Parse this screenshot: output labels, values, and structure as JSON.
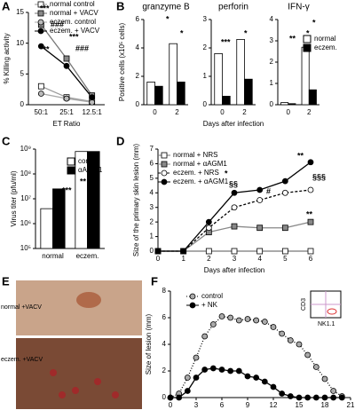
{
  "chart_data": [
    {
      "type": "line",
      "label": "A",
      "xlabel": "ET Ratio",
      "ylabel": "% Killing activity",
      "categories": [
        "50:1",
        "25:1",
        "12.5:1"
      ],
      "ylim": [
        0,
        15
      ],
      "yticks": [
        0,
        5,
        10,
        15
      ],
      "series": [
        {
          "name": "normal control",
          "marker": "square",
          "color": "#ffffff",
          "line_color": "#999999",
          "values": [
            3.0,
            1.2,
            0.5
          ]
        },
        {
          "name": "normal + VACV",
          "marker": "square",
          "color": "#888888",
          "line_color": "#777777",
          "values": [
            13,
            7.5,
            1.5
          ]
        },
        {
          "name": "eczem. control",
          "marker": "circle",
          "color": "#bbbbbb",
          "line_color": "#aaaaaa",
          "values": [
            1.8,
            1.0,
            0.4
          ]
        },
        {
          "name": "eczem. + VACV",
          "marker": "circle",
          "color": "#000000",
          "line_color": "#000000",
          "values": [
            9.5,
            6.3,
            1.2
          ]
        }
      ],
      "annotations": [
        "***",
        "###",
        "***",
        "***",
        "###"
      ]
    },
    {
      "type": "bar",
      "label": "B",
      "title": "granzyme B",
      "ylabel": "Positive cells (x10⁵ cells)",
      "categories": [
        "0",
        "2"
      ],
      "ylim": [
        0,
        6
      ],
      "yticks": [
        0,
        2,
        4,
        6
      ],
      "series": [
        {
          "name": "normal",
          "color": "#ffffff",
          "values": [
            1.6,
            4.3
          ]
        },
        {
          "name": "eczem.",
          "color": "#000000",
          "values": [
            1.3,
            1.6
          ]
        }
      ],
      "annotations": [
        "*",
        "*"
      ]
    },
    {
      "type": "bar",
      "title": "perforin",
      "xlabel": "Days after infection",
      "categories": [
        "0",
        "2"
      ],
      "ylim": [
        0,
        3
      ],
      "yticks": [
        0,
        1,
        2,
        3
      ],
      "series": [
        {
          "name": "normal",
          "color": "#ffffff",
          "values": [
            1.8,
            2.3
          ]
        },
        {
          "name": "eczem.",
          "color": "#000000",
          "values": [
            0.3,
            0.9
          ]
        }
      ],
      "annotations": [
        "***",
        "*"
      ]
    },
    {
      "type": "bar",
      "title": "IFN-γ",
      "legend": true,
      "categories": [
        "0",
        "2"
      ],
      "ylim": [
        0,
        4
      ],
      "yticks": [
        0,
        1,
        2,
        3,
        4
      ],
      "series": [
        {
          "name": "normal",
          "color": "#ffffff",
          "values": [
            0.1,
            2.7
          ]
        },
        {
          "name": "eczem.",
          "color": "#000000",
          "values": [
            0.05,
            0.7
          ]
        }
      ],
      "annotations": [
        "**",
        "*",
        "*"
      ]
    },
    {
      "type": "bar",
      "label": "C",
      "ylabel": "Virus titer (pfu/ml)",
      "log_y": true,
      "legend": true,
      "categories": [
        "normal",
        "eczem."
      ],
      "ylim": [
        100000,
        1000000000
      ],
      "yticks": [
        {
          "value": 100000,
          "label": "10⁵"
        },
        {
          "value": 1000000,
          "label": "10⁶"
        },
        {
          "value": 10000000,
          "label": "10⁷"
        },
        {
          "value": 100000000,
          "label": "10⁸"
        },
        {
          "value": 1000000000,
          "label": "10⁹"
        }
      ],
      "series": [
        {
          "name": "control",
          "color": "#ffffff",
          "values": [
            4000000,
            800000000
          ]
        },
        {
          "name": "αAGM1",
          "color": "#000000",
          "values": [
            25000000,
            800000000
          ]
        }
      ],
      "annotations": [
        "***",
        "***",
        "**"
      ]
    },
    {
      "type": "line",
      "label": "D",
      "xlabel": "Days after infection",
      "ylabel": "Size of the primary skin lesion (mm)",
      "x": [
        0,
        1,
        2,
        3,
        4,
        5,
        6
      ],
      "xlim": [
        0,
        6
      ],
      "xticks": [
        0,
        1,
        2,
        3,
        4,
        5,
        6
      ],
      "ylim": [
        0,
        7
      ],
      "yticks": [
        0,
        1,
        2,
        3,
        4,
        5,
        6,
        7
      ],
      "series": [
        {
          "name": "normal + NRS",
          "marker": "square",
          "color": "#ffffff",
          "line_color": "#777777",
          "values": [
            0,
            0,
            0,
            0,
            0,
            0,
            0
          ]
        },
        {
          "name": "normal + αAGM1",
          "marker": "square",
          "color": "#888888",
          "line_color": "#888888",
          "values": [
            0,
            0,
            1.3,
            1.7,
            1.6,
            1.6,
            2.0
          ]
        },
        {
          "name": "eczem. + NRS",
          "marker": "circle",
          "color": "#ffffff",
          "line_color": "#000000",
          "dashed": true,
          "values": [
            0,
            0,
            1.6,
            3.0,
            3.5,
            4.0,
            4.2
          ]
        },
        {
          "name": "eczem. + αAGM1",
          "marker": "circle",
          "color": "#000000",
          "line_color": "#000000",
          "values": [
            0,
            0,
            2.0,
            4.0,
            4.2,
            4.8,
            6.1
          ]
        }
      ],
      "annotations": [
        "*",
        "§§",
        "**",
        "§§§",
        "**",
        "#"
      ]
    },
    {
      "type": "photo",
      "label": "E",
      "captions": [
        "normal +VACV",
        "eczem. +VACV"
      ]
    },
    {
      "type": "line",
      "label": "F",
      "xlabel": "Days after infection",
      "ylabel": "Size of lesion (mm)",
      "x": [
        0,
        1,
        2,
        3,
        4,
        5,
        6,
        7,
        8,
        9,
        10,
        11,
        12,
        13,
        14,
        15,
        16,
        17,
        18,
        19,
        20
      ],
      "xlim": [
        0,
        21
      ],
      "xticks": [
        0,
        3,
        6,
        9,
        12,
        15,
        18,
        21
      ],
      "ylim": [
        0,
        8
      ],
      "yticks": [
        0,
        2,
        4,
        6,
        8
      ],
      "series": [
        {
          "name": "control",
          "marker": "circle",
          "color": "#aaaaaa",
          "line_color": "#000000",
          "dotted": true,
          "values": [
            0,
            0.3,
            1.5,
            3.0,
            4.6,
            5.5,
            6.1,
            6.0,
            5.8,
            5.9,
            5.8,
            5.7,
            5.3,
            4.8,
            4.3,
            4.0,
            3.2,
            2.3,
            1.4,
            0.5,
            0.1
          ]
        },
        {
          "name": "+ NK",
          "marker": "circle",
          "color": "#000000",
          "line_color": "#000000",
          "values": [
            0,
            0,
            0.5,
            1.5,
            2.1,
            2.2,
            2.1,
            2.0,
            2.0,
            1.6,
            1.5,
            1.2,
            0.8,
            0.3,
            0.1,
            0,
            0,
            0,
            0,
            0,
            0
          ]
        }
      ],
      "inset_labels": [
        "CD3",
        "NK1.1"
      ]
    }
  ]
}
